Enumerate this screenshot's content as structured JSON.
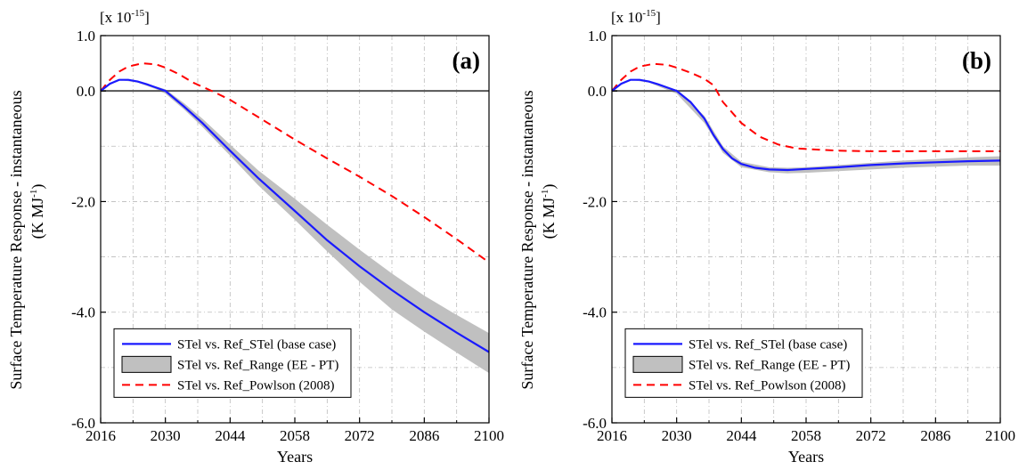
{
  "figure": {
    "ylabel_line1": "Surface Temperature Response - instantaneous",
    "ylabel_unit_prefix": "(K MJ",
    "ylabel_unit_exp": "-1",
    "ylabel_unit_suffix": ")",
    "multiplier_prefix": "[x 10",
    "multiplier_exp": "-15",
    "multiplier_suffix": "]",
    "xlabel": "Years",
    "colors": {
      "base_case": "#1a1aff",
      "powlson": "#ff0000",
      "range_fill": "#c0c0c0",
      "zero_line": "#555555",
      "grid": "#bbbbbb"
    }
  },
  "chart_data": [
    {
      "type": "line",
      "panel_label": "(a)",
      "xlabel": "Years",
      "ylabel": "Surface Temperature Response - instantaneous (K MJ-1)",
      "x_ticks": [
        "2016",
        "2030",
        "2044",
        "2058",
        "2072",
        "2086",
        "2100"
      ],
      "y_ticks": [
        "1.0",
        "0.0",
        "-2.0",
        "-4.0",
        "-6.0"
      ],
      "xlim": [
        2016,
        2100
      ],
      "ylim": [
        -6.0,
        1.0
      ],
      "grid": true,
      "legend_position": "bottom-left",
      "legend": [
        "STel vs. Ref_STel (base case)",
        "STel vs. Ref_Range (EE - PT)",
        "STel vs. Ref_Powlson (2008)"
      ],
      "series": [
        {
          "name": "STel vs. Ref_STel (base case)",
          "style": "solid",
          "x": [
            2016,
            2018,
            2020,
            2022,
            2024,
            2026,
            2028,
            2030,
            2034,
            2038,
            2044,
            2050,
            2058,
            2065,
            2072,
            2079,
            2086,
            2093,
            2100
          ],
          "y": [
            0.0,
            0.13,
            0.2,
            0.2,
            0.17,
            0.12,
            0.06,
            0.0,
            -0.28,
            -0.58,
            -1.08,
            -1.57,
            -2.17,
            -2.7,
            -3.17,
            -3.6,
            -4.0,
            -4.37,
            -4.72
          ]
        },
        {
          "name": "STel vs. Ref_Range (EE - PT)",
          "style": "band",
          "x": [
            2016,
            2020,
            2024,
            2028,
            2030,
            2034,
            2038,
            2044,
            2050,
            2058,
            2065,
            2072,
            2079,
            2086,
            2093,
            2100
          ],
          "upper": [
            0.0,
            0.2,
            0.17,
            0.08,
            0.03,
            -0.22,
            -0.5,
            -0.97,
            -1.43,
            -1.95,
            -2.42,
            -2.87,
            -3.3,
            -3.7,
            -4.05,
            -4.38
          ],
          "lower": [
            0.0,
            0.2,
            0.15,
            0.03,
            -0.05,
            -0.33,
            -0.65,
            -1.17,
            -1.7,
            -2.33,
            -2.9,
            -3.45,
            -3.95,
            -4.35,
            -4.73,
            -5.1
          ]
        },
        {
          "name": "STel vs. Ref_Powlson (2008)",
          "style": "dashed",
          "x": [
            2016,
            2018,
            2020,
            2022,
            2025,
            2028,
            2030,
            2033,
            2036,
            2040,
            2044,
            2051,
            2058,
            2065,
            2072,
            2079,
            2086,
            2093,
            2100
          ],
          "y": [
            0.0,
            0.2,
            0.35,
            0.44,
            0.5,
            0.48,
            0.42,
            0.3,
            0.15,
            0.0,
            -0.16,
            -0.52,
            -0.88,
            -1.22,
            -1.55,
            -1.9,
            -2.28,
            -2.68,
            -3.1
          ]
        }
      ]
    },
    {
      "type": "line",
      "panel_label": "(b)",
      "xlabel": "Years",
      "ylabel": "Surface Temperature Response - instantaneous (K MJ-1)",
      "x_ticks": [
        "2016",
        "2030",
        "2044",
        "2058",
        "2072",
        "2086",
        "2100"
      ],
      "y_ticks": [
        "1.0",
        "0.0",
        "-2.0",
        "-4.0",
        "-6.0"
      ],
      "xlim": [
        2016,
        2100
      ],
      "ylim": [
        -6.0,
        1.0
      ],
      "grid": true,
      "legend_position": "bottom-left",
      "legend": [
        "STel vs. Ref_STel (base case)",
        "STel vs. Ref_Range (EE - PT)",
        "STel vs. Ref_Powlson (2008)"
      ],
      "series": [
        {
          "name": "STel vs. Ref_STel (base case)",
          "style": "solid",
          "x": [
            2016,
            2018,
            2020,
            2022,
            2024,
            2026,
            2028,
            2030,
            2033,
            2036,
            2038,
            2040,
            2042,
            2044,
            2047,
            2050,
            2054,
            2058,
            2065,
            2072,
            2079,
            2086,
            2093,
            2100
          ],
          "y": [
            0.0,
            0.13,
            0.2,
            0.2,
            0.17,
            0.12,
            0.06,
            0.0,
            -0.2,
            -0.5,
            -0.8,
            -1.05,
            -1.22,
            -1.32,
            -1.39,
            -1.42,
            -1.43,
            -1.41,
            -1.38,
            -1.34,
            -1.31,
            -1.29,
            -1.27,
            -1.26
          ]
        },
        {
          "name": "STel vs. Ref_Range (EE - PT)",
          "style": "band",
          "x": [
            2016,
            2020,
            2024,
            2030,
            2036,
            2040,
            2044,
            2050,
            2054,
            2058,
            2065,
            2072,
            2079,
            2086,
            2093,
            2100
          ],
          "upper": [
            0.0,
            0.2,
            0.17,
            0.02,
            -0.45,
            -1.0,
            -1.28,
            -1.38,
            -1.39,
            -1.38,
            -1.34,
            -1.3,
            -1.26,
            -1.23,
            -1.2,
            -1.18
          ],
          "lower": [
            0.0,
            0.2,
            0.15,
            -0.05,
            -0.58,
            -1.12,
            -1.38,
            -1.47,
            -1.49,
            -1.48,
            -1.45,
            -1.42,
            -1.39,
            -1.37,
            -1.35,
            -1.35
          ]
        },
        {
          "name": "STel vs. Ref_Powlson (2008)",
          "style": "dashed",
          "x": [
            2016,
            2018,
            2020,
            2022,
            2025,
            2028,
            2030,
            2033,
            2036,
            2038,
            2040,
            2044,
            2048,
            2052,
            2056,
            2065,
            2072,
            2079,
            2086,
            2093,
            2100
          ],
          "y": [
            0.0,
            0.2,
            0.35,
            0.44,
            0.49,
            0.47,
            0.42,
            0.33,
            0.22,
            0.1,
            -0.2,
            -0.58,
            -0.83,
            -0.97,
            -1.04,
            -1.08,
            -1.09,
            -1.09,
            -1.09,
            -1.09,
            -1.09
          ]
        }
      ]
    }
  ]
}
